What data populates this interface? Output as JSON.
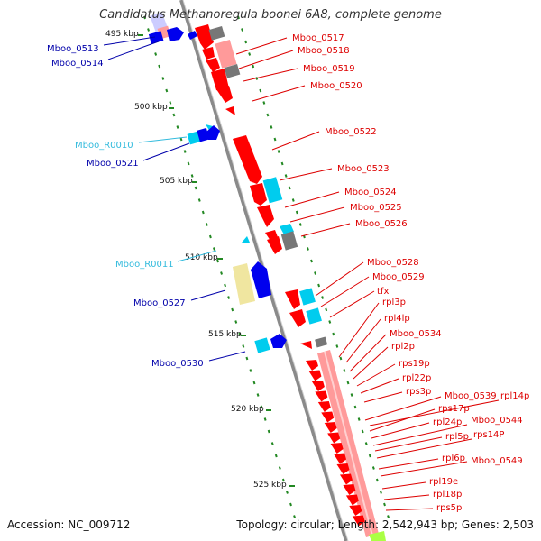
{
  "title": "Candidatus Methanoregula boonei 6A8, complete genome",
  "footer": {
    "accession": "Accession: NC_009712",
    "summary": "Topology: circular; Length: 2,542,943 bp; Genes: 2,503"
  },
  "colors": {
    "left_label": "#0000aa",
    "rna_label": "#33bbdd",
    "right_label": "#dd0000",
    "backbone": "#8a8a8a",
    "tick": "#228822",
    "gene_red": "#ff0000",
    "gene_pink": "#ff9a9a",
    "gene_gray": "#777777",
    "gene_blue": "#0000ee",
    "gene_cyan": "#00ccee",
    "gene_khaki": "#f0e6a0",
    "gene_lavender": "#ccccff"
  },
  "kbp_labels": [
    "495 kbp",
    "500 kbp",
    "505 kbp",
    "510 kbp",
    "515 kbp",
    "520 kbp",
    "525 kbp"
  ],
  "left_labels": [
    {
      "text": "Mboo_0513",
      "kind": "protein"
    },
    {
      "text": "Mboo_0514",
      "kind": "protein"
    },
    {
      "text": "Mboo_R0010",
      "kind": "rna"
    },
    {
      "text": "Mboo_0521",
      "kind": "protein"
    },
    {
      "text": "Mboo_R0011",
      "kind": "rna"
    },
    {
      "text": "Mboo_0527",
      "kind": "protein"
    },
    {
      "text": "Mboo_0530",
      "kind": "protein"
    }
  ],
  "right_labels": [
    "Mboo_0517",
    "Mboo_0518",
    "Mboo_0519",
    "Mboo_0520",
    "Mboo_0522",
    "Mboo_0523",
    "Mboo_0524",
    "Mboo_0525",
    "Mboo_0526",
    "Mboo_0528",
    "Mboo_0529",
    "tfx",
    "rpl3p",
    "rpl4lp",
    "Mboo_0534",
    "rpl2p",
    "rps19p",
    "rpl22p",
    "rps3p",
    "Mboo_0539",
    "rpl14p",
    "rps17p",
    "rpl24p",
    "Mboo_0544",
    "rpl5p",
    "rps14P",
    "rpl6p",
    "Mboo_0549",
    "rpl19e",
    "rpl18p",
    "rps5p"
  ]
}
